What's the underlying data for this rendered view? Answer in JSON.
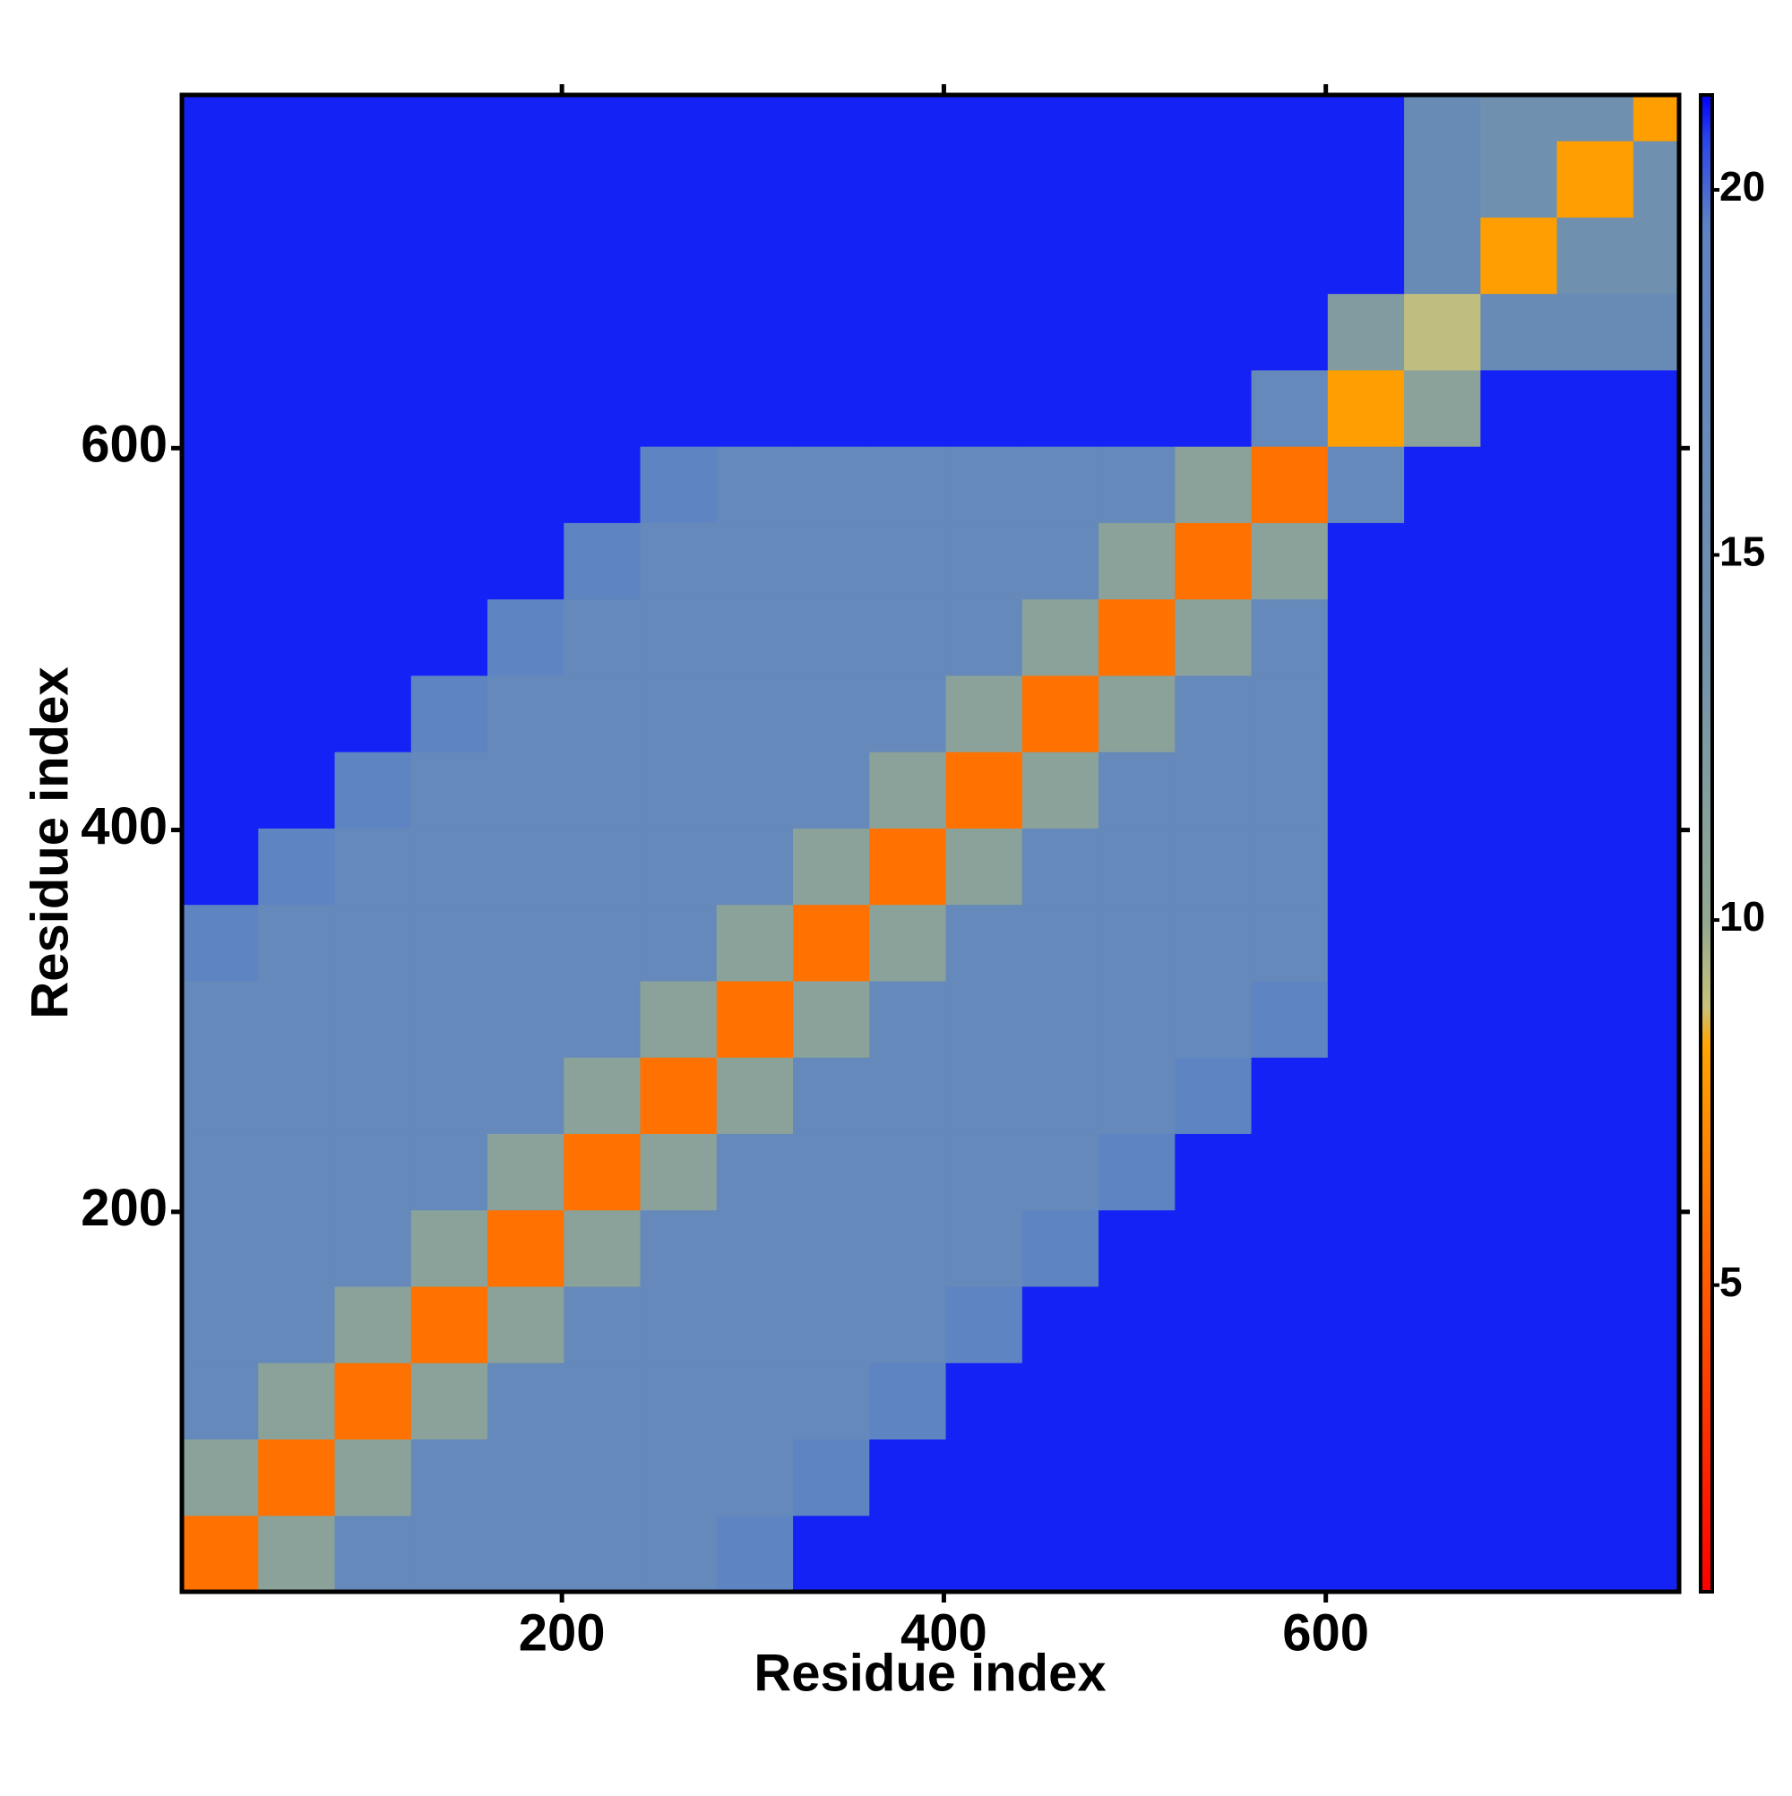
{
  "chart_data": {
    "type": "heatmap",
    "xlabel": "Residue index",
    "ylabel": "Residue index",
    "xlim": [
      1,
      785
    ],
    "ylim": [
      1,
      785
    ],
    "xticks": [
      200,
      400,
      600
    ],
    "yticks": [
      200,
      400,
      600
    ],
    "x_edges": [
      1,
      41,
      81,
      121,
      161,
      201,
      241,
      281,
      321,
      361,
      401,
      441,
      481,
      521,
      561,
      601,
      641,
      681,
      721,
      761,
      801
    ],
    "y_edges": [
      1,
      41,
      81,
      121,
      161,
      201,
      241,
      281,
      321,
      361,
      401,
      441,
      481,
      521,
      561,
      601,
      641,
      681,
      721,
      761,
      801
    ],
    "z": [
      [
        6,
        11,
        17,
        17,
        17,
        17,
        17,
        19,
        21,
        21,
        21,
        21,
        21,
        21,
        21,
        21,
        21,
        21,
        21,
        21
      ],
      [
        11,
        6,
        11,
        17,
        17,
        17,
        17,
        17,
        19,
        21,
        21,
        21,
        21,
        21,
        21,
        21,
        21,
        21,
        21,
        21
      ],
      [
        17,
        11,
        6,
        11,
        17,
        17,
        17,
        17,
        17,
        19,
        21,
        21,
        21,
        21,
        21,
        21,
        21,
        21,
        21,
        21
      ],
      [
        17,
        17,
        11,
        6,
        11,
        17,
        17,
        17,
        17,
        17,
        19,
        21,
        21,
        21,
        21,
        21,
        21,
        21,
        21,
        21
      ],
      [
        17,
        17,
        17,
        11,
        6,
        11,
        17,
        17,
        17,
        17,
        17,
        19,
        21,
        21,
        21,
        21,
        21,
        21,
        21,
        21
      ],
      [
        17,
        17,
        17,
        17,
        11,
        6,
        11,
        17,
        17,
        17,
        17,
        17,
        19,
        21,
        21,
        21,
        21,
        21,
        21,
        21
      ],
      [
        17,
        17,
        17,
        17,
        17,
        11,
        6,
        11,
        17,
        17,
        17,
        17,
        17,
        19,
        21,
        21,
        21,
        21,
        21,
        21
      ],
      [
        17,
        17,
        17,
        17,
        17,
        17,
        11,
        6,
        11,
        17,
        17,
        17,
        17,
        17,
        19,
        21,
        21,
        21,
        21,
        21
      ],
      [
        19,
        17,
        17,
        17,
        17,
        17,
        17,
        11,
        6,
        11,
        17,
        17,
        17,
        17,
        17,
        21,
        21,
        21,
        21,
        21
      ],
      [
        21,
        19,
        17,
        17,
        17,
        17,
        17,
        17,
        11,
        6,
        11,
        17,
        17,
        17,
        17,
        21,
        21,
        21,
        21,
        21
      ],
      [
        21,
        21,
        19,
        17,
        17,
        17,
        17,
        17,
        17,
        11,
        6,
        11,
        17,
        17,
        17,
        21,
        21,
        21,
        21,
        21
      ],
      [
        21,
        21,
        21,
        19,
        17,
        17,
        17,
        17,
        17,
        17,
        11,
        6,
        11,
        17,
        17,
        21,
        21,
        21,
        21,
        21
      ],
      [
        21,
        21,
        21,
        21,
        19,
        17,
        17,
        17,
        17,
        17,
        17,
        11,
        6,
        11,
        17,
        21,
        21,
        21,
        21,
        21
      ],
      [
        21,
        21,
        21,
        21,
        21,
        19,
        17,
        17,
        17,
        17,
        17,
        17,
        11,
        6,
        11,
        21,
        21,
        21,
        21,
        21
      ],
      [
        21,
        21,
        21,
        21,
        21,
        21,
        19,
        17,
        17,
        17,
        17,
        17,
        17,
        11,
        6,
        17,
        21,
        21,
        21,
        21
      ],
      [
        21,
        21,
        21,
        21,
        21,
        21,
        21,
        21,
        21,
        21,
        21,
        21,
        21,
        21,
        17,
        8,
        11,
        21,
        21,
        21
      ],
      [
        21,
        21,
        21,
        21,
        21,
        21,
        21,
        21,
        21,
        21,
        21,
        21,
        21,
        21,
        21,
        12,
        9,
        16,
        16,
        16
      ],
      [
        21,
        21,
        21,
        21,
        21,
        21,
        21,
        21,
        21,
        21,
        21,
        21,
        21,
        21,
        21,
        21,
        16,
        8,
        14,
        14
      ],
      [
        21,
        21,
        21,
        21,
        21,
        21,
        21,
        21,
        21,
        21,
        21,
        21,
        21,
        21,
        21,
        21,
        16,
        14,
        8,
        14
      ],
      [
        21,
        21,
        21,
        21,
        21,
        21,
        21,
        21,
        21,
        21,
        21,
        21,
        21,
        21,
        21,
        21,
        16,
        14,
        14,
        8
      ]
    ],
    "zlim": [
      0.8,
      21.3
    ],
    "zticks": [
      5,
      10,
      15,
      20
    ],
    "colorscale": [
      [
        0.8,
        "#ff0000"
      ],
      [
        5,
        "#ff5a00"
      ],
      [
        8.3,
        "#ffa500"
      ],
      [
        8.8,
        "#c9c27a"
      ],
      [
        10,
        "#93a892"
      ],
      [
        14,
        "#6f90ae"
      ],
      [
        19.5,
        "#5d83c4"
      ],
      [
        20.7,
        "#2a44ea"
      ],
      [
        21.3,
        "#0000ff"
      ]
    ]
  }
}
